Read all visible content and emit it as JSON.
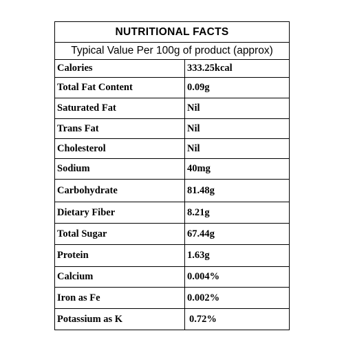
{
  "label": {
    "title": "NUTRITIONAL  FACTS",
    "subtitle": "Typical Value Per 100g of product (approx)",
    "rows": [
      {
        "name": "Calories",
        "value": "333.25kcal"
      },
      {
        "name": "Total Fat Content",
        "value": "0.09g"
      },
      {
        "name": "Saturated Fat",
        "value": "Nil"
      },
      {
        "name": "Trans  Fat",
        "value": "Nil"
      },
      {
        "name": "Cholesterol",
        "value": "Nil"
      },
      {
        "name": "Sodium",
        "value": "40mg"
      },
      {
        "name": "Carbohydrate",
        "value": "81.48g"
      },
      {
        "name": "Dietary Fiber",
        "value": "8.21g"
      },
      {
        "name": "Total Sugar",
        "value": "67.44g"
      },
      {
        "name": "Protein",
        "value": "1.63g"
      },
      {
        "name": "Calcium",
        "value": "0.004%"
      },
      {
        "name": "Iron as Fe",
        "value": "0.002%"
      },
      {
        "name": "Potassium as K",
        "value": "0.72%"
      }
    ]
  }
}
